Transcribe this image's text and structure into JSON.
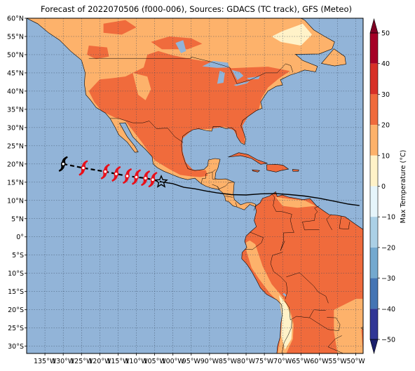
{
  "title": "Forecast of 2022070506 (f000-006), Sources: GDACS (TC track), GFS (Meteo)",
  "map": {
    "lon_range": [
      -140,
      -48
    ],
    "lat_range": [
      -32,
      60
    ],
    "lat_ticks": [
      {
        "v": 60,
        "label": "60°N"
      },
      {
        "v": 55,
        "label": "55°N"
      },
      {
        "v": 50,
        "label": "50°N"
      },
      {
        "v": 45,
        "label": "45°N"
      },
      {
        "v": 40,
        "label": "40°N"
      },
      {
        "v": 35,
        "label": "35°N"
      },
      {
        "v": 30,
        "label": "30°N"
      },
      {
        "v": 25,
        "label": "25°N"
      },
      {
        "v": 20,
        "label": "20°N"
      },
      {
        "v": 15,
        "label": "15°N"
      },
      {
        "v": 10,
        "label": "10°N"
      },
      {
        "v": 5,
        "label": "5°N"
      },
      {
        "v": 0,
        "label": "0°"
      },
      {
        "v": -5,
        "label": "5°S"
      },
      {
        "v": -10,
        "label": "10°S"
      },
      {
        "v": -15,
        "label": "15°S"
      },
      {
        "v": -20,
        "label": "20°S"
      },
      {
        "v": -25,
        "label": "25°S"
      },
      {
        "v": -30,
        "label": "30°S"
      }
    ],
    "lon_ticks": [
      {
        "v": -135,
        "label": "135°W"
      },
      {
        "v": -130,
        "label": "130°W"
      },
      {
        "v": -125,
        "label": "125°W"
      },
      {
        "v": -120,
        "label": "120°W"
      },
      {
        "v": -115,
        "label": "115°W"
      },
      {
        "v": -110,
        "label": "110°W"
      },
      {
        "v": -105,
        "label": "105°W"
      },
      {
        "v": -100,
        "label": "100°W"
      },
      {
        "v": -95,
        "label": "95°W"
      },
      {
        "v": -90,
        "label": "90°W"
      },
      {
        "v": -85,
        "label": "85°W"
      },
      {
        "v": -80,
        "label": "80°W"
      },
      {
        "v": -75,
        "label": "75°W"
      },
      {
        "v": -70,
        "label": "70°W"
      },
      {
        "v": -65,
        "label": "65°W"
      },
      {
        "v": -60,
        "label": "60°W"
      },
      {
        "v": -55,
        "label": "55°W"
      },
      {
        "v": -50,
        "label": "50°W"
      }
    ],
    "colors": {
      "ocean": "#92b4d8",
      "land_hot": "#f06b3c",
      "land_warm": "#fdb26b",
      "land_mild": "#fff2c8",
      "track_past": "#000000",
      "track_forecast": "#e8101a"
    },
    "track_past": [
      [
        -130,
        20.0
      ],
      [
        -125,
        19.0
      ]
    ],
    "track_forecast_points": [
      [
        -124.5,
        18.9
      ],
      [
        -118.5,
        17.9
      ],
      [
        -115.5,
        17.3
      ],
      [
        -112.5,
        16.7
      ],
      [
        -110.0,
        16.4
      ],
      [
        -107.5,
        16.1
      ],
      [
        -105.5,
        15.7
      ]
    ],
    "current_position": [
      -103.2,
      15.1
    ],
    "trailing_line": [
      [
        -103.2,
        15.1
      ],
      [
        -100,
        14.6
      ],
      [
        -97,
        13.6
      ],
      [
        -94,
        13.2
      ],
      [
        -91,
        12.6
      ],
      [
        -88,
        12.1
      ],
      [
        -84,
        11.6
      ],
      [
        -80,
        11.5
      ],
      [
        -76,
        11.8
      ],
      [
        -72,
        11.9
      ],
      [
        -68,
        11.6
      ],
      [
        -64,
        11.2
      ],
      [
        -60,
        10.6
      ],
      [
        -56,
        9.8
      ],
      [
        -52,
        9.0
      ],
      [
        -49,
        8.6
      ]
    ]
  },
  "colorbar": {
    "label": "Max Temperature (°C)",
    "ticks": [
      {
        "v": 50,
        "label": "50"
      },
      {
        "v": 40,
        "label": "40"
      },
      {
        "v": 30,
        "label": "30"
      },
      {
        "v": 20,
        "label": "20"
      },
      {
        "v": 10,
        "label": "10"
      },
      {
        "v": 0,
        "label": "0"
      },
      {
        "v": -10,
        "label": "−10"
      },
      {
        "v": -20,
        "label": "−20"
      },
      {
        "v": -30,
        "label": "−30"
      },
      {
        "v": -40,
        "label": "−40"
      },
      {
        "v": -50,
        "label": "−50"
      }
    ],
    "bands": [
      {
        "from": 40,
        "to": 50,
        "color": "#a50026"
      },
      {
        "from": 30,
        "to": 40,
        "color": "#d73027"
      },
      {
        "from": 20,
        "to": 30,
        "color": "#f06b3c"
      },
      {
        "from": 10,
        "to": 20,
        "color": "#fdb26b"
      },
      {
        "from": 0,
        "to": 10,
        "color": "#fff2c8"
      },
      {
        "from": -10,
        "to": 0,
        "color": "#e6f5fb"
      },
      {
        "from": -20,
        "to": -10,
        "color": "#abd0e6"
      },
      {
        "from": -30,
        "to": -20,
        "color": "#74a9cf"
      },
      {
        "from": -40,
        "to": -30,
        "color": "#4575b4"
      },
      {
        "from": -50,
        "to": -40,
        "color": "#313695"
      }
    ],
    "extend_top_color": "#7f0024",
    "extend_bottom_color": "#1a1f6b"
  }
}
